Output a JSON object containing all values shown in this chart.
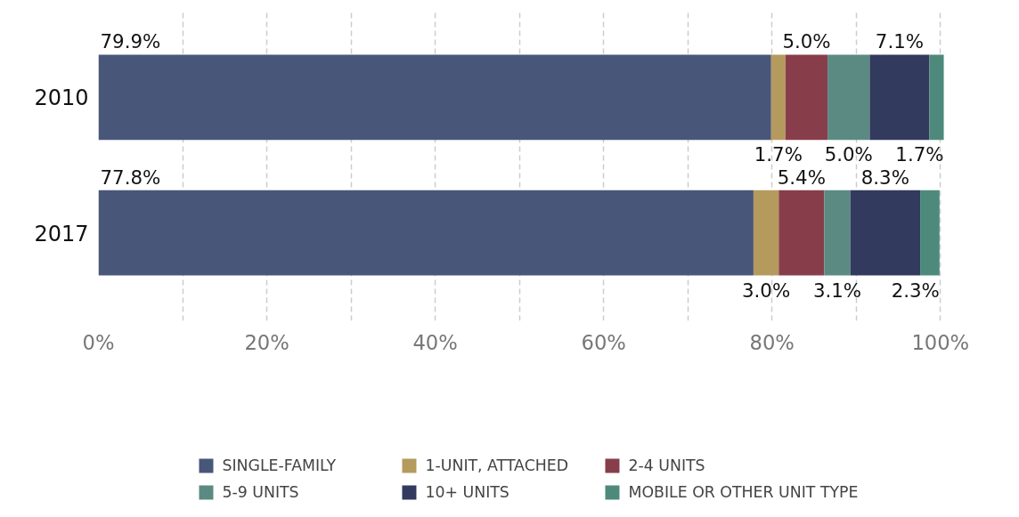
{
  "chart_data": {
    "type": "bar",
    "orientation": "horizontal",
    "stacked": true,
    "categories": [
      "2010",
      "2017"
    ],
    "series": [
      {
        "name": "SINGLE-FAMILY",
        "color": "#48567a",
        "values": [
          79.9,
          77.8
        ],
        "value_labels": [
          "79.9%",
          "77.8%"
        ]
      },
      {
        "name": "1-UNIT, ATTACHED",
        "color": "#b59a5e",
        "values": [
          1.7,
          3.0
        ],
        "value_labels": [
          "1.7%",
          "3.0%"
        ]
      },
      {
        "name": "2-4 UNITS",
        "color": "#873e4a",
        "values": [
          5.0,
          5.4
        ],
        "value_labels": [
          "5.0%",
          "5.4%"
        ]
      },
      {
        "name": "5-9 UNITS",
        "color": "#5b8a82",
        "values": [
          5.0,
          3.1
        ],
        "value_labels": [
          "5.0%",
          "3.1%"
        ]
      },
      {
        "name": "10+ UNITS",
        "color": "#323a5e",
        "values": [
          7.1,
          8.3
        ],
        "value_labels": [
          "7.1%",
          "8.3%"
        ]
      },
      {
        "name": "MOBILE OR OTHER UNIT TYPE",
        "color": "#4e8a7c",
        "values": [
          1.7,
          2.3
        ],
        "value_labels": [
          "1.7%",
          "2.3%"
        ]
      }
    ],
    "xlim": [
      0,
      100.5
    ],
    "xticks": [
      {
        "value": 0,
        "label": "0%"
      },
      {
        "value": 10,
        "label": null
      },
      {
        "value": 20,
        "label": "20%"
      },
      {
        "value": 30,
        "label": null
      },
      {
        "value": 40,
        "label": "40%"
      },
      {
        "value": 50,
        "label": null
      },
      {
        "value": 60,
        "label": "60%"
      },
      {
        "value": 70,
        "label": null
      },
      {
        "value": 80,
        "label": "80%"
      },
      {
        "value": 90,
        "label": null
      },
      {
        "value": 100,
        "label": "100%"
      }
    ],
    "grid": "x",
    "legend": "bottom"
  }
}
